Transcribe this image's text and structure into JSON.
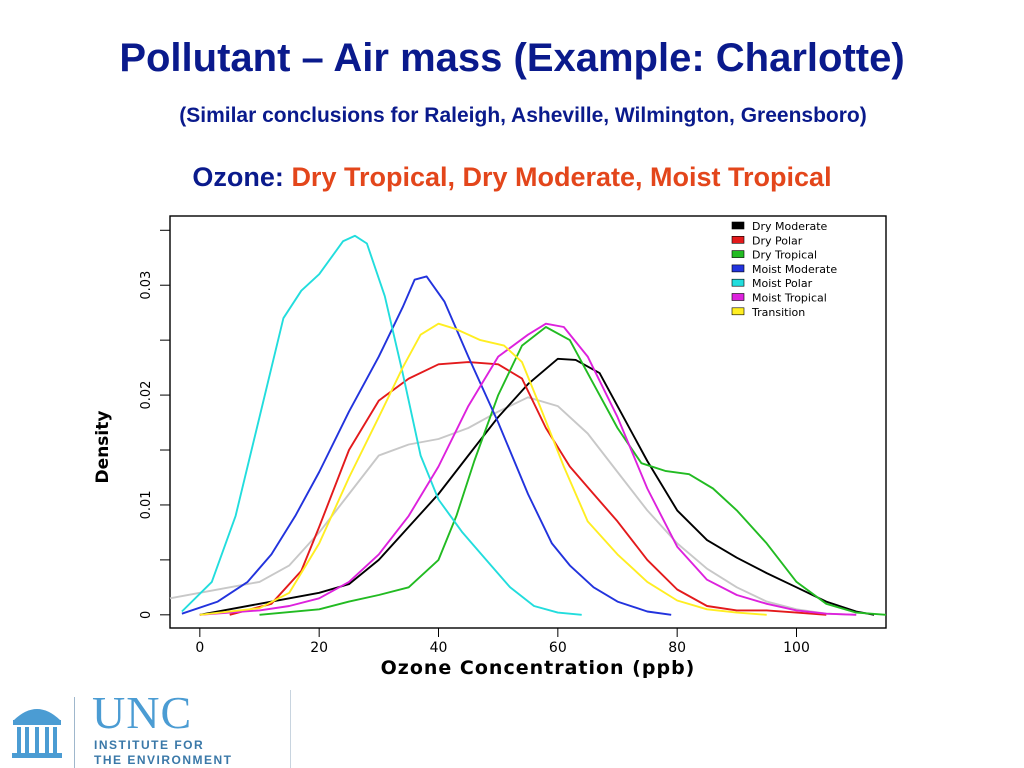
{
  "slide": {
    "title": "Pollutant – Air mass (Example: Charlotte)",
    "subtitle": "(Similar conclusions for Raleigh, Asheville, Wilmington, Greensboro)",
    "pollutant_label": "Ozone:",
    "pollutant_types": "Dry Tropical, Dry Moderate, Moist Tropical"
  },
  "logo": {
    "name": "UNC",
    "line1": "INSTITUTE FOR",
    "line2": "THE ENVIRONMENT",
    "color": "#4b9cd3"
  },
  "chart_data": {
    "type": "line",
    "title": "",
    "xlabel": "Ozone Concentration (ppb)",
    "ylabel": "Density",
    "xlim": [
      -5,
      115
    ],
    "ylim": [
      -0.0012,
      0.0363
    ],
    "xticks": [
      0,
      20,
      40,
      60,
      80,
      100
    ],
    "yticks": [
      0,
      0.01,
      0.02,
      0.03
    ],
    "ytick_labels": [
      "0",
      "0.01",
      "0.02",
      "0.03"
    ],
    "legend_position": "top-right",
    "grid": false,
    "series": [
      {
        "name": "Dry Moderate",
        "color": "#000000",
        "points": [
          [
            0,
            0
          ],
          [
            10,
            0.001
          ],
          [
            20,
            0.002
          ],
          [
            25,
            0.0028
          ],
          [
            30,
            0.005
          ],
          [
            35,
            0.008
          ],
          [
            40,
            0.011
          ],
          [
            45,
            0.0145
          ],
          [
            50,
            0.018
          ],
          [
            55,
            0.021
          ],
          [
            60,
            0.0233
          ],
          [
            63,
            0.0232
          ],
          [
            67,
            0.022
          ],
          [
            70,
            0.019
          ],
          [
            75,
            0.014
          ],
          [
            80,
            0.0095
          ],
          [
            85,
            0.0068
          ],
          [
            90,
            0.0052
          ],
          [
            95,
            0.0038
          ],
          [
            100,
            0.0025
          ],
          [
            105,
            0.0012
          ],
          [
            110,
            0.0003
          ],
          [
            113,
            0
          ]
        ]
      },
      {
        "name": "Dry Polar",
        "color": "#e31a1c",
        "points": [
          [
            5,
            0
          ],
          [
            12,
            0.001
          ],
          [
            17,
            0.004
          ],
          [
            20,
            0.008
          ],
          [
            25,
            0.015
          ],
          [
            30,
            0.0195
          ],
          [
            35,
            0.0215
          ],
          [
            40,
            0.0228
          ],
          [
            45,
            0.023
          ],
          [
            50,
            0.0228
          ],
          [
            54,
            0.0215
          ],
          [
            58,
            0.017
          ],
          [
            62,
            0.0135
          ],
          [
            66,
            0.011
          ],
          [
            70,
            0.0085
          ],
          [
            75,
            0.005
          ],
          [
            80,
            0.0023
          ],
          [
            85,
            0.0008
          ],
          [
            90,
            0.0004
          ],
          [
            95,
            0.0004
          ],
          [
            100,
            0.0002
          ],
          [
            105,
            0
          ]
        ]
      },
      {
        "name": "Dry Tropical",
        "color": "#22bb22",
        "points": [
          [
            10,
            0
          ],
          [
            20,
            0.0005
          ],
          [
            25,
            0.0012
          ],
          [
            30,
            0.0018
          ],
          [
            35,
            0.0025
          ],
          [
            40,
            0.005
          ],
          [
            43,
            0.009
          ],
          [
            46,
            0.014
          ],
          [
            50,
            0.02
          ],
          [
            54,
            0.0245
          ],
          [
            58,
            0.0262
          ],
          [
            62,
            0.025
          ],
          [
            66,
            0.021
          ],
          [
            70,
            0.017
          ],
          [
            74,
            0.0138
          ],
          [
            78,
            0.0131
          ],
          [
            82,
            0.0128
          ],
          [
            86,
            0.0115
          ],
          [
            90,
            0.0095
          ],
          [
            95,
            0.0065
          ],
          [
            100,
            0.003
          ],
          [
            105,
            0.001
          ],
          [
            110,
            0.0002
          ],
          [
            115,
            0
          ]
        ]
      },
      {
        "name": "Moist Moderate",
        "color": "#2233dd",
        "points": [
          [
            -3,
            0.0001
          ],
          [
            3,
            0.0012
          ],
          [
            8,
            0.003
          ],
          [
            12,
            0.0055
          ],
          [
            16,
            0.009
          ],
          [
            20,
            0.013
          ],
          [
            25,
            0.0185
          ],
          [
            30,
            0.0235
          ],
          [
            34,
            0.028
          ],
          [
            36,
            0.0305
          ],
          [
            38,
            0.0308
          ],
          [
            41,
            0.0285
          ],
          [
            45,
            0.0235
          ],
          [
            50,
            0.0175
          ],
          [
            55,
            0.011
          ],
          [
            59,
            0.0065
          ],
          [
            62,
            0.0045
          ],
          [
            66,
            0.0025
          ],
          [
            70,
            0.0012
          ],
          [
            75,
            0.0003
          ],
          [
            79,
            0
          ]
        ]
      },
      {
        "name": "Moist Polar",
        "color": "#22dddd",
        "points": [
          [
            -3,
            0.0003
          ],
          [
            2,
            0.003
          ],
          [
            6,
            0.009
          ],
          [
            10,
            0.018
          ],
          [
            14,
            0.027
          ],
          [
            17,
            0.0295
          ],
          [
            20,
            0.031
          ],
          [
            24,
            0.034
          ],
          [
            26,
            0.0345
          ],
          [
            28,
            0.0338
          ],
          [
            31,
            0.029
          ],
          [
            34,
            0.022
          ],
          [
            37,
            0.0145
          ],
          [
            40,
            0.0105
          ],
          [
            44,
            0.0075
          ],
          [
            48,
            0.005
          ],
          [
            52,
            0.0025
          ],
          [
            56,
            0.0008
          ],
          [
            60,
            0.0002
          ],
          [
            64,
            0
          ]
        ]
      },
      {
        "name": "Moist Tropical",
        "color": "#dd22dd",
        "points": [
          [
            0,
            0
          ],
          [
            10,
            0.0004
          ],
          [
            15,
            0.0008
          ],
          [
            20,
            0.0015
          ],
          [
            25,
            0.003
          ],
          [
            30,
            0.0055
          ],
          [
            35,
            0.009
          ],
          [
            40,
            0.0135
          ],
          [
            45,
            0.019
          ],
          [
            50,
            0.0235
          ],
          [
            55,
            0.0255
          ],
          [
            58,
            0.0265
          ],
          [
            61,
            0.0262
          ],
          [
            65,
            0.0235
          ],
          [
            70,
            0.018
          ],
          [
            75,
            0.0115
          ],
          [
            80,
            0.0062
          ],
          [
            85,
            0.0032
          ],
          [
            90,
            0.0018
          ],
          [
            95,
            0.001
          ],
          [
            100,
            0.0004
          ],
          [
            105,
            0.0001
          ],
          [
            110,
            0
          ]
        ]
      },
      {
        "name": "Transition",
        "color": "#ffee22",
        "points": [
          [
            0,
            0
          ],
          [
            10,
            0.0006
          ],
          [
            15,
            0.002
          ],
          [
            20,
            0.0065
          ],
          [
            25,
            0.0125
          ],
          [
            30,
            0.018
          ],
          [
            34,
            0.0225
          ],
          [
            37,
            0.0255
          ],
          [
            40,
            0.0265
          ],
          [
            43,
            0.026
          ],
          [
            47,
            0.025
          ],
          [
            51,
            0.0245
          ],
          [
            54,
            0.023
          ],
          [
            57,
            0.019
          ],
          [
            61,
            0.0135
          ],
          [
            65,
            0.0085
          ],
          [
            70,
            0.0055
          ],
          [
            75,
            0.003
          ],
          [
            80,
            0.0013
          ],
          [
            85,
            0.0005
          ],
          [
            90,
            0.0002
          ],
          [
            95,
            0
          ]
        ]
      },
      {
        "name": "",
        "color": "#c8c8c8",
        "points": [
          [
            -5,
            0.0015
          ],
          [
            0,
            0.002
          ],
          [
            5,
            0.0025
          ],
          [
            10,
            0.003
          ],
          [
            15,
            0.0045
          ],
          [
            20,
            0.0075
          ],
          [
            25,
            0.011
          ],
          [
            30,
            0.0145
          ],
          [
            35,
            0.0155
          ],
          [
            40,
            0.016
          ],
          [
            45,
            0.017
          ],
          [
            50,
            0.0185
          ],
          [
            55,
            0.0198
          ],
          [
            60,
            0.019
          ],
          [
            65,
            0.0165
          ],
          [
            70,
            0.013
          ],
          [
            75,
            0.0095
          ],
          [
            80,
            0.0065
          ],
          [
            85,
            0.0042
          ],
          [
            90,
            0.0025
          ],
          [
            95,
            0.0012
          ],
          [
            100,
            0.0005
          ],
          [
            105,
            0.0001
          ],
          [
            110,
            0
          ]
        ]
      }
    ]
  }
}
